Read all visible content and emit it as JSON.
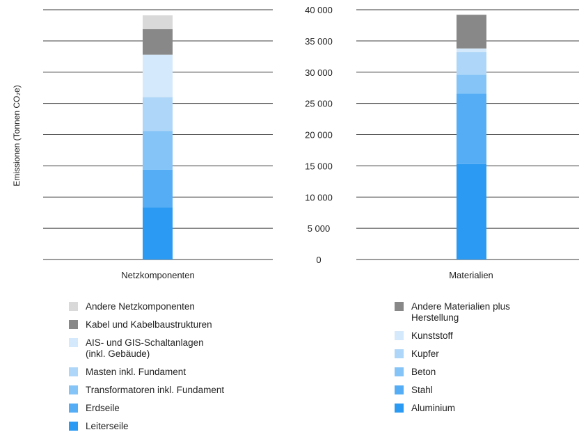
{
  "chart_data": [
    {
      "type": "bar",
      "stacked": true,
      "categories": [
        "Netzkomponenten"
      ],
      "ylabel": "Emissionen (Tonnen CO₂e)",
      "ylim": [
        0,
        40000
      ],
      "yticks": [
        0,
        5000,
        10000,
        15000,
        20000,
        25000,
        30000,
        35000,
        40000
      ],
      "show_yticklabels": false,
      "grid": true,
      "series": [
        {
          "name": "Leiterseile",
          "values": [
            8300
          ],
          "color": "#2b9af3"
        },
        {
          "name": "Erdseile",
          "values": [
            6100
          ],
          "color": "#55aef5"
        },
        {
          "name": "Transformatoren inkl. Fundament",
          "values": [
            6200
          ],
          "color": "#85c4f7"
        },
        {
          "name": "Masten inkl. Fundament",
          "values": [
            5400
          ],
          "color": "#aed6f8"
        },
        {
          "name": "AIS- und GIS-Schaltanlagen (inkl. Gebäude)",
          "values": [
            6800
          ],
          "color": "#d4e9fb"
        },
        {
          "name": "Kabel und Kabelbaustrukturen",
          "values": [
            4100
          ],
          "color": "#888888"
        },
        {
          "name": "Andere Netzkomponenten",
          "values": [
            2200
          ],
          "color": "#d9d9d9"
        }
      ]
    },
    {
      "type": "bar",
      "stacked": true,
      "categories": [
        "Materialien"
      ],
      "ylim": [
        0,
        40000
      ],
      "yticks": [
        0,
        5000,
        10000,
        15000,
        20000,
        25000,
        30000,
        35000,
        40000
      ],
      "ytick_labels": [
        "0",
        "5 000",
        "10 000",
        "15 000",
        "20 000",
        "25 000",
        "30 000",
        "35 000",
        "40 000"
      ],
      "grid": true,
      "series": [
        {
          "name": "Aluminium",
          "values": [
            15300
          ],
          "color": "#2b9af3"
        },
        {
          "name": "Stahl",
          "values": [
            11300
          ],
          "color": "#55aef5"
        },
        {
          "name": "Beton",
          "values": [
            3000
          ],
          "color": "#85c4f7"
        },
        {
          "name": "Kupfer",
          "values": [
            3600
          ],
          "color": "#aed6f8"
        },
        {
          "name": "Kunststoff",
          "values": [
            600
          ],
          "color": "#d4e9fb"
        },
        {
          "name": "Andere Materialien plus Herstellung",
          "values": [
            5400
          ],
          "color": "#888888"
        }
      ]
    }
  ],
  "legend_left": [
    {
      "label": "Andere Netzkomponenten",
      "color": "#d9d9d9"
    },
    {
      "label": "Kabel und Kabelbaustrukturen",
      "color": "#888888"
    },
    {
      "label": "AIS- und GIS-Schaltanlagen",
      "label2": "(inkl. Gebäude)",
      "color": "#d4e9fb"
    },
    {
      "label": "Masten inkl. Fundament",
      "color": "#aed6f8"
    },
    {
      "label": "Transformatoren inkl. Fundament",
      "color": "#85c4f7"
    },
    {
      "label": "Erdseile",
      "color": "#55aef5"
    },
    {
      "label": "Leiterseile",
      "color": "#2b9af3"
    }
  ],
  "legend_right": [
    {
      "label": "Andere Materialien plus",
      "label2": "Herstellung",
      "color": "#888888"
    },
    {
      "label": "Kunststoff",
      "color": "#d4e9fb"
    },
    {
      "label": "Kupfer",
      "color": "#aed6f8"
    },
    {
      "label": "Beton",
      "color": "#85c4f7"
    },
    {
      "label": "Stahl",
      "color": "#55aef5"
    },
    {
      "label": "Aluminium",
      "color": "#2b9af3"
    }
  ]
}
